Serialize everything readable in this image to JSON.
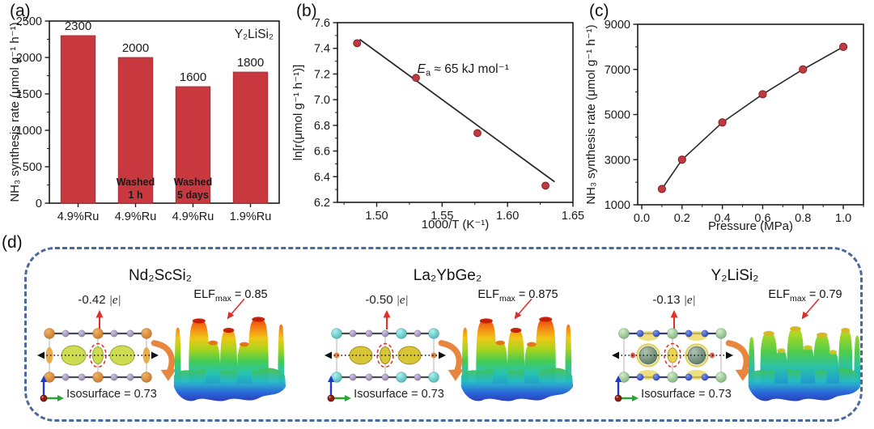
{
  "panels": {
    "a": {
      "tag": "(a)"
    },
    "b": {
      "tag": "(b)"
    },
    "c": {
      "tag": "(c)"
    },
    "d": {
      "tag": "(d)"
    }
  },
  "colors": {
    "bar": "#C8393F",
    "bar_edge": "#A32C32",
    "marker": "#C23A40",
    "marker_edge": "#7E2226",
    "line": "#2b2b2b",
    "frame": "#1a1a1a",
    "dashed_border": "#4A6A9B",
    "red_accent": "#D93025",
    "orange_arrow": "#E8863E"
  },
  "chart_data": [
    {
      "id": "a",
      "type": "bar",
      "corner_label": "Y₂LiSi₂",
      "ylabel": "NH₃ synthesis rate (μmol g⁻¹ h⁻¹)",
      "categories": [
        "4.9%Ru",
        "4.9%Ru",
        "4.9%Ru",
        "1.9%Ru"
      ],
      "values": [
        2300,
        2000,
        1600,
        1800
      ],
      "value_labels": [
        "2300",
        "2000",
        "1600",
        "1800"
      ],
      "bar_texts": [
        [],
        [
          "Washed",
          "1 h"
        ],
        [
          "Washed",
          "5 days"
        ],
        []
      ],
      "ylim": [
        0,
        2500
      ],
      "yticks": [
        0,
        500,
        1000,
        1500,
        2000,
        2500
      ],
      "ytick_labels": [
        "0",
        "500",
        "1000",
        "1500",
        "2000",
        "2500"
      ],
      "y_minor_step": 250
    },
    {
      "id": "b",
      "type": "scatter-fit",
      "xlabel": "1000/T (K⁻¹)",
      "ylabel": "ln[r(μmol g⁻¹ h⁻¹)]",
      "points_x": [
        1.485,
        1.53,
        1.577,
        1.629
      ],
      "points_y": [
        7.44,
        7.17,
        6.74,
        6.33
      ],
      "fit_x": [
        1.487,
        1.636
      ],
      "fit_y": [
        7.47,
        6.36
      ],
      "annotation": {
        "italic": "E",
        "sub": "a",
        "rest": " ≈ 65 kJ mol⁻¹",
        "x": 1.531,
        "y": 7.21
      },
      "xlim": [
        1.47,
        1.65
      ],
      "ylim": [
        6.2,
        7.6
      ],
      "xticks": [
        1.5,
        1.55,
        1.6,
        1.65
      ],
      "xtick_labels": [
        "1.50",
        "1.55",
        "1.60",
        "1.65"
      ],
      "yticks": [
        6.2,
        6.4,
        6.6,
        6.8,
        7.0,
        7.2,
        7.4,
        7.6
      ],
      "ytick_labels": [
        "6.2",
        "6.4",
        "6.6",
        "6.8",
        "7.0",
        "7.2",
        "7.4",
        "7.6"
      ],
      "x_minor_step": 0.025,
      "y_minor_step": 0.1
    },
    {
      "id": "c",
      "type": "line-scatter",
      "xlabel": "Pressure (MPa)",
      "ylabel": "NH₃ synthesis rate (μmol g⁻¹ h⁻¹)",
      "points_x": [
        0.1,
        0.2,
        0.4,
        0.6,
        0.8,
        1.0
      ],
      "points_y": [
        1700,
        3000,
        4650,
        5900,
        7000,
        8000
      ],
      "xlim": [
        -0.02,
        1.1
      ],
      "ylim": [
        1000,
        9000
      ],
      "xticks": [
        0.0,
        0.2,
        0.4,
        0.6,
        0.8,
        1.0
      ],
      "xtick_labels": [
        "0.0",
        "0.2",
        "0.4",
        "0.6",
        "0.8",
        "1.0"
      ],
      "yticks": [
        1000,
        3000,
        5000,
        7000,
        9000
      ],
      "ytick_labels": [
        "1000",
        "3000",
        "5000",
        "7000",
        "9000"
      ],
      "x_minor_step": 0.1,
      "y_minor_step": 1000
    }
  ],
  "panel_d": {
    "compounds": [
      {
        "name": "Nd₂ScSi₂",
        "charge": "-0.42",
        "charge_unit": "|e|",
        "isosurface_label": "Isosurface = 0.73",
        "elf": {
          "base": "ELF",
          "sub": "max",
          "value": "= 0.85"
        },
        "theme": "nd"
      },
      {
        "name": "La₂YbGe₂",
        "charge": "-0.50",
        "charge_unit": "|e|",
        "isosurface_label": "Isosurface = 0.73",
        "elf": {
          "base": "ELF",
          "sub": "max",
          "value": "= 0.875"
        },
        "theme": "la"
      },
      {
        "name": "Y₂LiSi₂",
        "charge": "-0.13",
        "charge_unit": "|e|",
        "isosurface_label": "Isosurface = 0.73",
        "elf": {
          "base": "ELF",
          "sub": "max",
          "value": "= 0.79"
        },
        "theme": "y"
      }
    ]
  }
}
